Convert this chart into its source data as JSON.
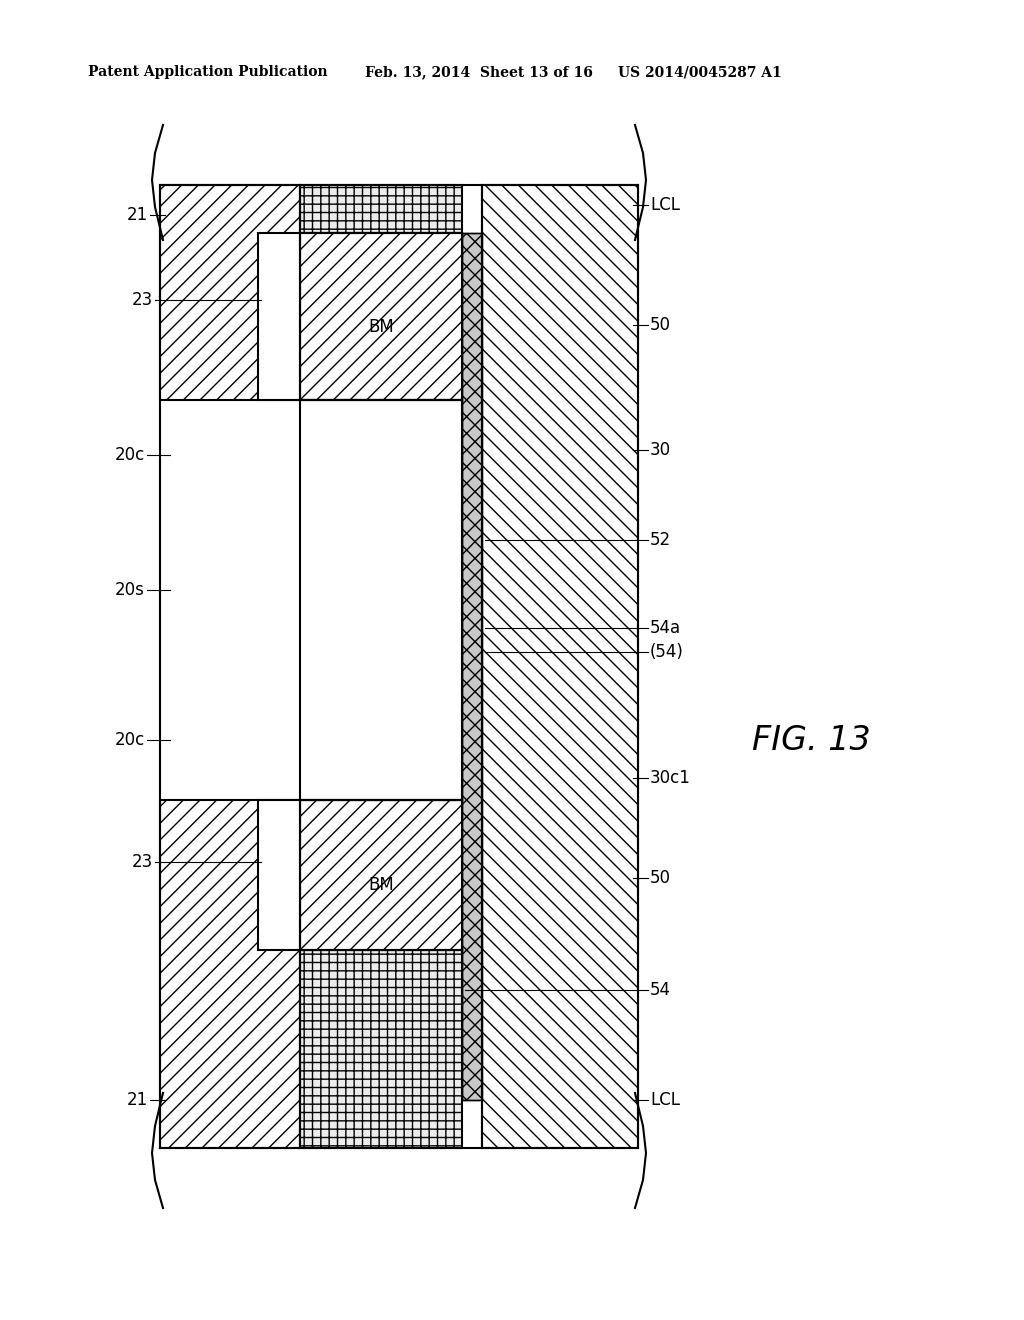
{
  "bg_color": "#ffffff",
  "header_left": "Patent Application Publication",
  "header_mid": "Feb. 13, 2014  Sheet 13 of 16",
  "header_right": "US 2014/0045287 A1",
  "fig_label": "FIG. 13",
  "XL0": 160,
  "XL1": 300,
  "XSPL": 258,
  "XSPR": 300,
  "XBM0": 300,
  "XBM1": 462,
  "XTHK": 462,
  "XTHKR": 482,
  "XR0": 482,
  "XR1": 638,
  "YT": 185,
  "YLCLT_B": 233,
  "YBM_T_T": 233,
  "YBM_T_B": 400,
  "YCT": 400,
  "YCB": 800,
  "YBM_B_T": 800,
  "YBM_B_B": 950,
  "YLCLB_T": 950,
  "YB": 1148
}
